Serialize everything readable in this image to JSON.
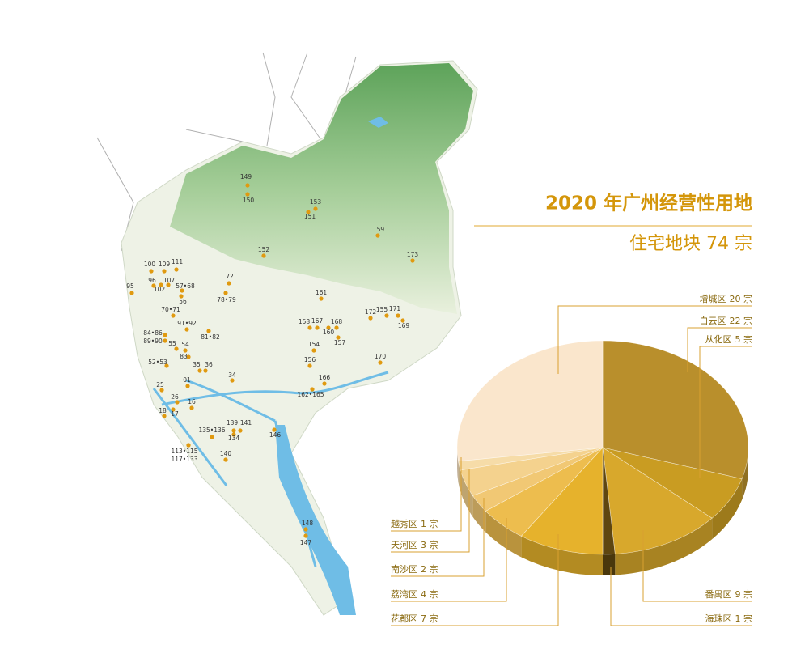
{
  "title": "2020 年广州经营性用地",
  "subtitle": "住宅地块 74 宗",
  "map": {
    "labels": [
      "149",
      "150",
      "153",
      "151",
      "159",
      "152",
      "173",
      "100",
      "109",
      "111",
      "96",
      "107",
      "102",
      "57•68",
      "56",
      "95",
      "72",
      "78•79",
      "161",
      "70•71",
      "172",
      "155",
      "171",
      "169",
      "91•92",
      "158",
      "167",
      "168",
      "160",
      "157",
      "84•86",
      "81•82",
      "89•90",
      "55",
      "54",
      "154",
      "83",
      "156",
      "170",
      "52•53",
      "35",
      "36",
      "34",
      "01",
      "166",
      "25",
      "162•165",
      "26",
      "16",
      "18",
      "17",
      "139",
      "141",
      "135•136",
      "134",
      "146",
      "113•115",
      "117•133",
      "140",
      "148",
      "147"
    ]
  },
  "chart_data": {
    "type": "pie",
    "categories": [
      "白云区",
      "从化区",
      "番禺区",
      "海珠区",
      "花都区",
      "荔湾区",
      "南沙区",
      "天河区",
      "越秀区",
      "增城区"
    ],
    "values": [
      22,
      5,
      9,
      1,
      7,
      4,
      2,
      3,
      1,
      20
    ],
    "value_labels": [
      "22 宗",
      "5 宗",
      "9 宗",
      "1 宗",
      "7 宗",
      "4 宗",
      "2 宗",
      "3 宗",
      "1 宗",
      "20 宗"
    ],
    "colors": [
      "#b98f2c",
      "#c99c22",
      "#d8a82c",
      "#5e4610",
      "#e6b22c",
      "#edbd4e",
      "#f1c874",
      "#f4d28e",
      "#f6dca8",
      "#fae6cc"
    ]
  }
}
